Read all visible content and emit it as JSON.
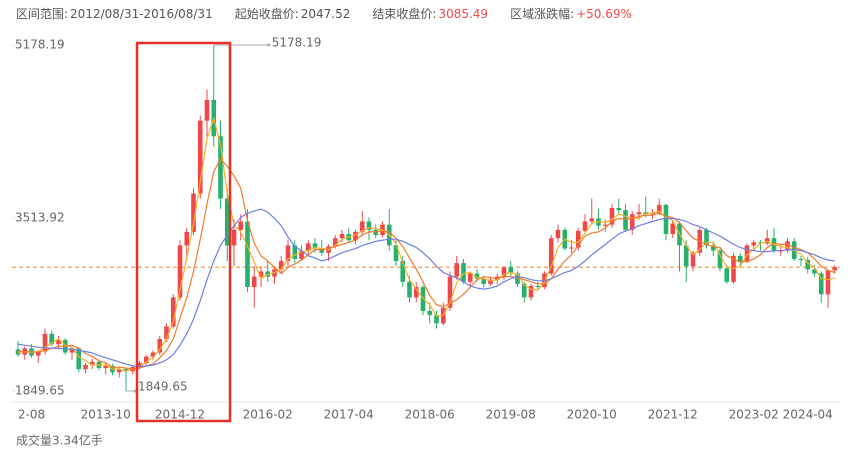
{
  "header": [
    {
      "label": "区间范围:",
      "value": "2012/08/31-2016/08/31"
    },
    {
      "label": "起始收盘价:",
      "value": 2047.52
    },
    {
      "label": "结束收盘价:",
      "value": 3085.49,
      "value_color": "#f04848"
    },
    {
      "label": "区域涨跌幅:",
      "value": "+50.69%",
      "value_color": "#f04848"
    }
  ],
  "chart_data": {
    "type": "candlestick",
    "volume_label": "成交量3.34亿手",
    "ylim": [
      1849.65,
      5178.19
    ],
    "yticks": [
      1849.65,
      3513.92,
      5178.19
    ],
    "up_color": "#f04848",
    "down_color": "#27b06a",
    "reference_line": {
      "value": 3040,
      "color": "#f5a05a"
    },
    "annotations": [
      {
        "value": 5178.19,
        "candle": 29,
        "at": "high"
      },
      {
        "value": 1849.65,
        "candle": 16,
        "at": "low"
      }
    ],
    "categories": [
      null,
      null,
      "2-08",
      null,
      null,
      null,
      null,
      null,
      null,
      null,
      null,
      null,
      null,
      "2013-10",
      null,
      null,
      null,
      null,
      null,
      null,
      null,
      null,
      null,
      null,
      "2014-12",
      null,
      null,
      null,
      null,
      null,
      null,
      null,
      null,
      null,
      null,
      null,
      null,
      "2016-02",
      null,
      null,
      null,
      null,
      null,
      null,
      null,
      null,
      null,
      null,
      null,
      "2017-04",
      null,
      null,
      null,
      null,
      null,
      null,
      null,
      null,
      null,
      null,
      null,
      "2018-06",
      null,
      null,
      null,
      null,
      null,
      null,
      null,
      null,
      null,
      null,
      null,
      "2019-08",
      null,
      null,
      null,
      null,
      null,
      null,
      null,
      null,
      null,
      null,
      null,
      "2020-10",
      null,
      null,
      null,
      null,
      null,
      null,
      null,
      null,
      null,
      null,
      null,
      "2021-12",
      null,
      null,
      null,
      null,
      null,
      null,
      null,
      null,
      null,
      null,
      null,
      "2023-02",
      null,
      null,
      null,
      null,
      null,
      null,
      null,
      "2024-04",
      null,
      null,
      null,
      null
    ],
    "candles": [
      [
        2250,
        2330,
        2180,
        2200
      ],
      [
        2200,
        2280,
        2150,
        2260
      ],
      [
        2260,
        2300,
        2170,
        2190
      ],
      [
        2190,
        2240,
        2120,
        2230
      ],
      [
        2230,
        2450,
        2200,
        2400
      ],
      [
        2400,
        2430,
        2280,
        2300
      ],
      [
        2300,
        2380,
        2250,
        2340
      ],
      [
        2340,
        2360,
        2200,
        2220
      ],
      [
        2220,
        2280,
        2150,
        2260
      ],
      [
        2260,
        2270,
        2030,
        2060
      ],
      [
        2060,
        2120,
        2020,
        2100
      ],
      [
        2100,
        2160,
        2060,
        2130
      ],
      [
        2130,
        2150,
        2050,
        2070
      ],
      [
        2070,
        2120,
        2010,
        2090
      ],
      [
        2090,
        2110,
        2000,
        2030
      ],
      [
        2030,
        2080,
        1980,
        2060
      ],
      [
        2060,
        2070,
        1849.65,
        2040
      ],
      [
        2040,
        2100,
        2010,
        2080
      ],
      [
        2080,
        2140,
        2060,
        2120
      ],
      [
        2120,
        2200,
        2100,
        2180
      ],
      [
        2180,
        2240,
        2150,
        2220
      ],
      [
        2220,
        2380,
        2200,
        2350
      ],
      [
        2350,
        2500,
        2320,
        2470
      ],
      [
        2470,
        2780,
        2450,
        2750
      ],
      [
        2750,
        3300,
        2720,
        3250
      ],
      [
        3250,
        3420,
        3100,
        3380
      ],
      [
        3380,
        3800,
        3350,
        3750
      ],
      [
        3750,
        4500,
        3700,
        4450
      ],
      [
        4450,
        4750,
        4300,
        4650
      ],
      [
        4650,
        5178.19,
        4200,
        4300
      ],
      [
        4300,
        4450,
        3600,
        3700
      ],
      [
        3700,
        3800,
        3100,
        3250
      ],
      [
        3250,
        3500,
        3050,
        3400
      ],
      [
        3400,
        3550,
        3300,
        3480
      ],
      [
        3480,
        3600,
        2800,
        2850
      ],
      [
        2850,
        3050,
        2650,
        2950
      ],
      [
        2950,
        3050,
        2850,
        3000
      ],
      [
        3000,
        3100,
        2900,
        2950
      ],
      [
        2950,
        3050,
        2880,
        3020
      ],
      [
        3020,
        3150,
        2980,
        3100
      ],
      [
        3100,
        3300,
        3050,
        3250
      ],
      [
        3250,
        3300,
        3080,
        3120
      ],
      [
        3120,
        3250,
        3100,
        3200
      ],
      [
        3200,
        3300,
        3150,
        3270
      ],
      [
        3270,
        3320,
        3180,
        3220
      ],
      [
        3220,
        3300,
        3150,
        3180
      ],
      [
        3180,
        3260,
        3100,
        3240
      ],
      [
        3240,
        3350,
        3220,
        3320
      ],
      [
        3320,
        3400,
        3280,
        3360
      ],
      [
        3360,
        3420,
        3280,
        3300
      ],
      [
        3300,
        3400,
        3260,
        3380
      ],
      [
        3380,
        3580,
        3350,
        3480
      ],
      [
        3480,
        3520,
        3300,
        3400
      ],
      [
        3400,
        3450,
        3320,
        3350
      ],
      [
        3350,
        3480,
        3330,
        3450
      ],
      [
        3450,
        3600,
        3200,
        3250
      ],
      [
        3250,
        3300,
        3050,
        3100
      ],
      [
        3100,
        3150,
        2850,
        2900
      ],
      [
        2900,
        2950,
        2700,
        2750
      ],
      [
        2750,
        2900,
        2700,
        2850
      ],
      [
        2850,
        2870,
        2580,
        2620
      ],
      [
        2620,
        2700,
        2500,
        2580
      ],
      [
        2580,
        2620,
        2450,
        2500
      ],
      [
        2500,
        2700,
        2480,
        2650
      ],
      [
        2650,
        3000,
        2620,
        2950
      ],
      [
        2950,
        3150,
        2920,
        3080
      ],
      [
        3080,
        3120,
        2880,
        2900
      ],
      [
        2900,
        3000,
        2860,
        2980
      ],
      [
        2980,
        3020,
        2900,
        2930
      ],
      [
        2930,
        2960,
        2850,
        2880
      ],
      [
        2880,
        2950,
        2860,
        2920
      ],
      [
        2920,
        2980,
        2880,
        2950
      ],
      [
        2950,
        3050,
        2920,
        3040
      ],
      [
        3040,
        3100,
        2950,
        2980
      ],
      [
        2980,
        3000,
        2850,
        2880
      ],
      [
        2880,
        2900,
        2700,
        2750
      ],
      [
        2750,
        2880,
        2720,
        2860
      ],
      [
        2860,
        2900,
        2820,
        2850
      ],
      [
        2850,
        3000,
        2830,
        2980
      ],
      [
        2980,
        3350,
        2960,
        3320
      ],
      [
        3320,
        3450,
        3280,
        3400
      ],
      [
        3400,
        3420,
        3200,
        3220
      ],
      [
        3220,
        3300,
        3180,
        3230
      ],
      [
        3230,
        3420,
        3200,
        3390
      ],
      [
        3390,
        3550,
        3380,
        3480
      ],
      [
        3480,
        3700,
        3450,
        3510
      ],
      [
        3510,
        3600,
        3400,
        3440
      ],
      [
        3440,
        3500,
        3380,
        3450
      ],
      [
        3450,
        3650,
        3420,
        3610
      ],
      [
        3610,
        3700,
        3550,
        3590
      ],
      [
        3590,
        3650,
        3380,
        3400
      ],
      [
        3400,
        3580,
        3350,
        3550
      ],
      [
        3550,
        3650,
        3500,
        3570
      ],
      [
        3570,
        3720,
        3520,
        3550
      ],
      [
        3550,
        3600,
        3500,
        3560
      ],
      [
        3560,
        3700,
        3540,
        3640
      ],
      [
        3640,
        3650,
        3300,
        3360
      ],
      [
        3360,
        3500,
        3320,
        3460
      ],
      [
        3460,
        3480,
        3000,
        3250
      ],
      [
        3250,
        3300,
        2900,
        3050
      ],
      [
        3050,
        3200,
        3000,
        3180
      ],
      [
        3180,
        3420,
        3150,
        3400
      ],
      [
        3400,
        3420,
        3220,
        3250
      ],
      [
        3250,
        3280,
        3150,
        3200
      ],
      [
        3200,
        3220,
        3000,
        3030
      ],
      [
        3030,
        3060,
        2880,
        2900
      ],
      [
        2900,
        3180,
        2880,
        3150
      ],
      [
        3150,
        3180,
        3050,
        3090
      ],
      [
        3090,
        3270,
        3080,
        3250
      ],
      [
        3250,
        3300,
        3200,
        3280
      ],
      [
        3280,
        3300,
        3200,
        3270
      ],
      [
        3270,
        3400,
        3250,
        3320
      ],
      [
        3320,
        3420,
        3180,
        3200
      ],
      [
        3200,
        3260,
        3150,
        3200
      ],
      [
        3200,
        3320,
        3180,
        3290
      ],
      [
        3290,
        3320,
        3100,
        3120
      ],
      [
        3120,
        3150,
        3050,
        3110
      ],
      [
        3110,
        3140,
        2980,
        3020
      ],
      [
        3020,
        3060,
        2950,
        2980
      ],
      [
        2980,
        3000,
        2700,
        2780
      ],
      [
        2780,
        3020,
        2650,
        3010
      ],
      [
        3010,
        3060,
        2980,
        3040
      ]
    ],
    "series": [
      {
        "color": "#f5b324",
        "values": [
          2220,
          2230,
          2220,
          2230,
          2270,
          2310,
          2350,
          2290,
          2270,
          2180,
          2140,
          2100,
          2100,
          2100,
          2060,
          2060,
          2040,
          2060,
          2080,
          2130,
          2170,
          2250,
          2350,
          2520,
          2820,
          3130,
          3460,
          3860,
          4280,
          4470,
          4220,
          3750,
          3450,
          3380,
          3240,
          3090,
          2930,
          2970,
          2990,
          3020,
          3120,
          3160,
          3190,
          3200,
          3230,
          3220,
          3210,
          3250,
          3310,
          3330,
          3350,
          3390,
          3420,
          3410,
          3400,
          3350,
          3270,
          3080,
          2920,
          2830,
          2740,
          2680,
          2570,
          2580,
          2700,
          2890,
          2980,
          2990,
          2940,
          2930,
          2910,
          2920,
          2970,
          2990,
          2970,
          2870,
          2830,
          2820,
          2900,
          3050,
          3230,
          3310,
          3280,
          3280,
          3370,
          3460,
          3480,
          3470,
          3500,
          3550,
          3530,
          3510,
          3510,
          3560,
          3560,
          3580,
          3520,
          3490,
          3360,
          3250,
          3160,
          3210,
          3280,
          3280,
          3160,
          3040,
          3030,
          3050,
          3160,
          3210,
          3270,
          3290,
          3260,
          3240,
          3230,
          3200,
          3170,
          3080,
          3040,
          2930,
          2920,
          2940
        ]
      },
      {
        "color": "#ef7b2f",
        "values": [
          2230,
          2230,
          2225,
          2225,
          2240,
          2260,
          2280,
          2280,
          2290,
          2260,
          2210,
          2180,
          2140,
          2120,
          2080,
          2080,
          2070,
          2060,
          2070,
          2090,
          2110,
          2170,
          2240,
          2350,
          2550,
          2750,
          3000,
          3310,
          3650,
          3960,
          4080,
          4010,
          3920,
          3800,
          3490,
          3270,
          3150,
          3100,
          3040,
          2980,
          3040,
          3070,
          3110,
          3160,
          3210,
          3210,
          3220,
          3240,
          3260,
          3280,
          3300,
          3350,
          3380,
          3380,
          3390,
          3380,
          3320,
          3240,
          3130,
          3020,
          2900,
          2770,
          2680,
          2660,
          2690,
          2730,
          2780,
          2850,
          2920,
          2950,
          2940,
          2930,
          2950,
          2950,
          2940,
          2920,
          2900,
          2880,
          2880,
          2930,
          3020,
          3100,
          3160,
          3250,
          3340,
          3370,
          3380,
          3420,
          3480,
          3510,
          3500,
          3510,
          3530,
          3540,
          3540,
          3560,
          3530,
          3520,
          3470,
          3390,
          3320,
          3290,
          3260,
          3240,
          3230,
          3150,
          3120,
          3090,
          3100,
          3120,
          3160,
          3230,
          3270,
          3260,
          3260,
          3230,
          3210,
          3180,
          3120,
          3050,
          3010,
          2990
        ]
      },
      {
        "color": "#6b7fe3",
        "values": [
          2300,
          2290,
          2280,
          2270,
          2265,
          2260,
          2260,
          2255,
          2250,
          2240,
          2230,
          2215,
          2190,
          2170,
          2150,
          2130,
          2110,
          2090,
          2085,
          2090,
          2100,
          2120,
          2150,
          2200,
          2290,
          2400,
          2540,
          2720,
          2920,
          3100,
          3250,
          3350,
          3440,
          3520,
          3560,
          3580,
          3600,
          3570,
          3510,
          3440,
          3330,
          3240,
          3200,
          3150,
          3130,
          3100,
          3120,
          3150,
          3180,
          3200,
          3220,
          3250,
          3270,
          3290,
          3300,
          3310,
          3310,
          3290,
          3260,
          3230,
          3180,
          3120,
          3050,
          2990,
          2960,
          2940,
          2900,
          2860,
          2840,
          2830,
          2840,
          2860,
          2900,
          2930,
          2950,
          2940,
          2920,
          2910,
          2910,
          2930,
          2960,
          2990,
          3010,
          3050,
          3100,
          3160,
          3210,
          3260,
          3310,
          3360,
          3390,
          3410,
          3440,
          3460,
          3480,
          3500,
          3510,
          3510,
          3500,
          3480,
          3450,
          3430,
          3400,
          3370,
          3340,
          3300,
          3260,
          3230,
          3210,
          3200,
          3190,
          3190,
          3200,
          3200,
          3210,
          3210,
          3200,
          3180,
          3160,
          3130,
          3110,
          3100
        ]
      }
    ]
  }
}
